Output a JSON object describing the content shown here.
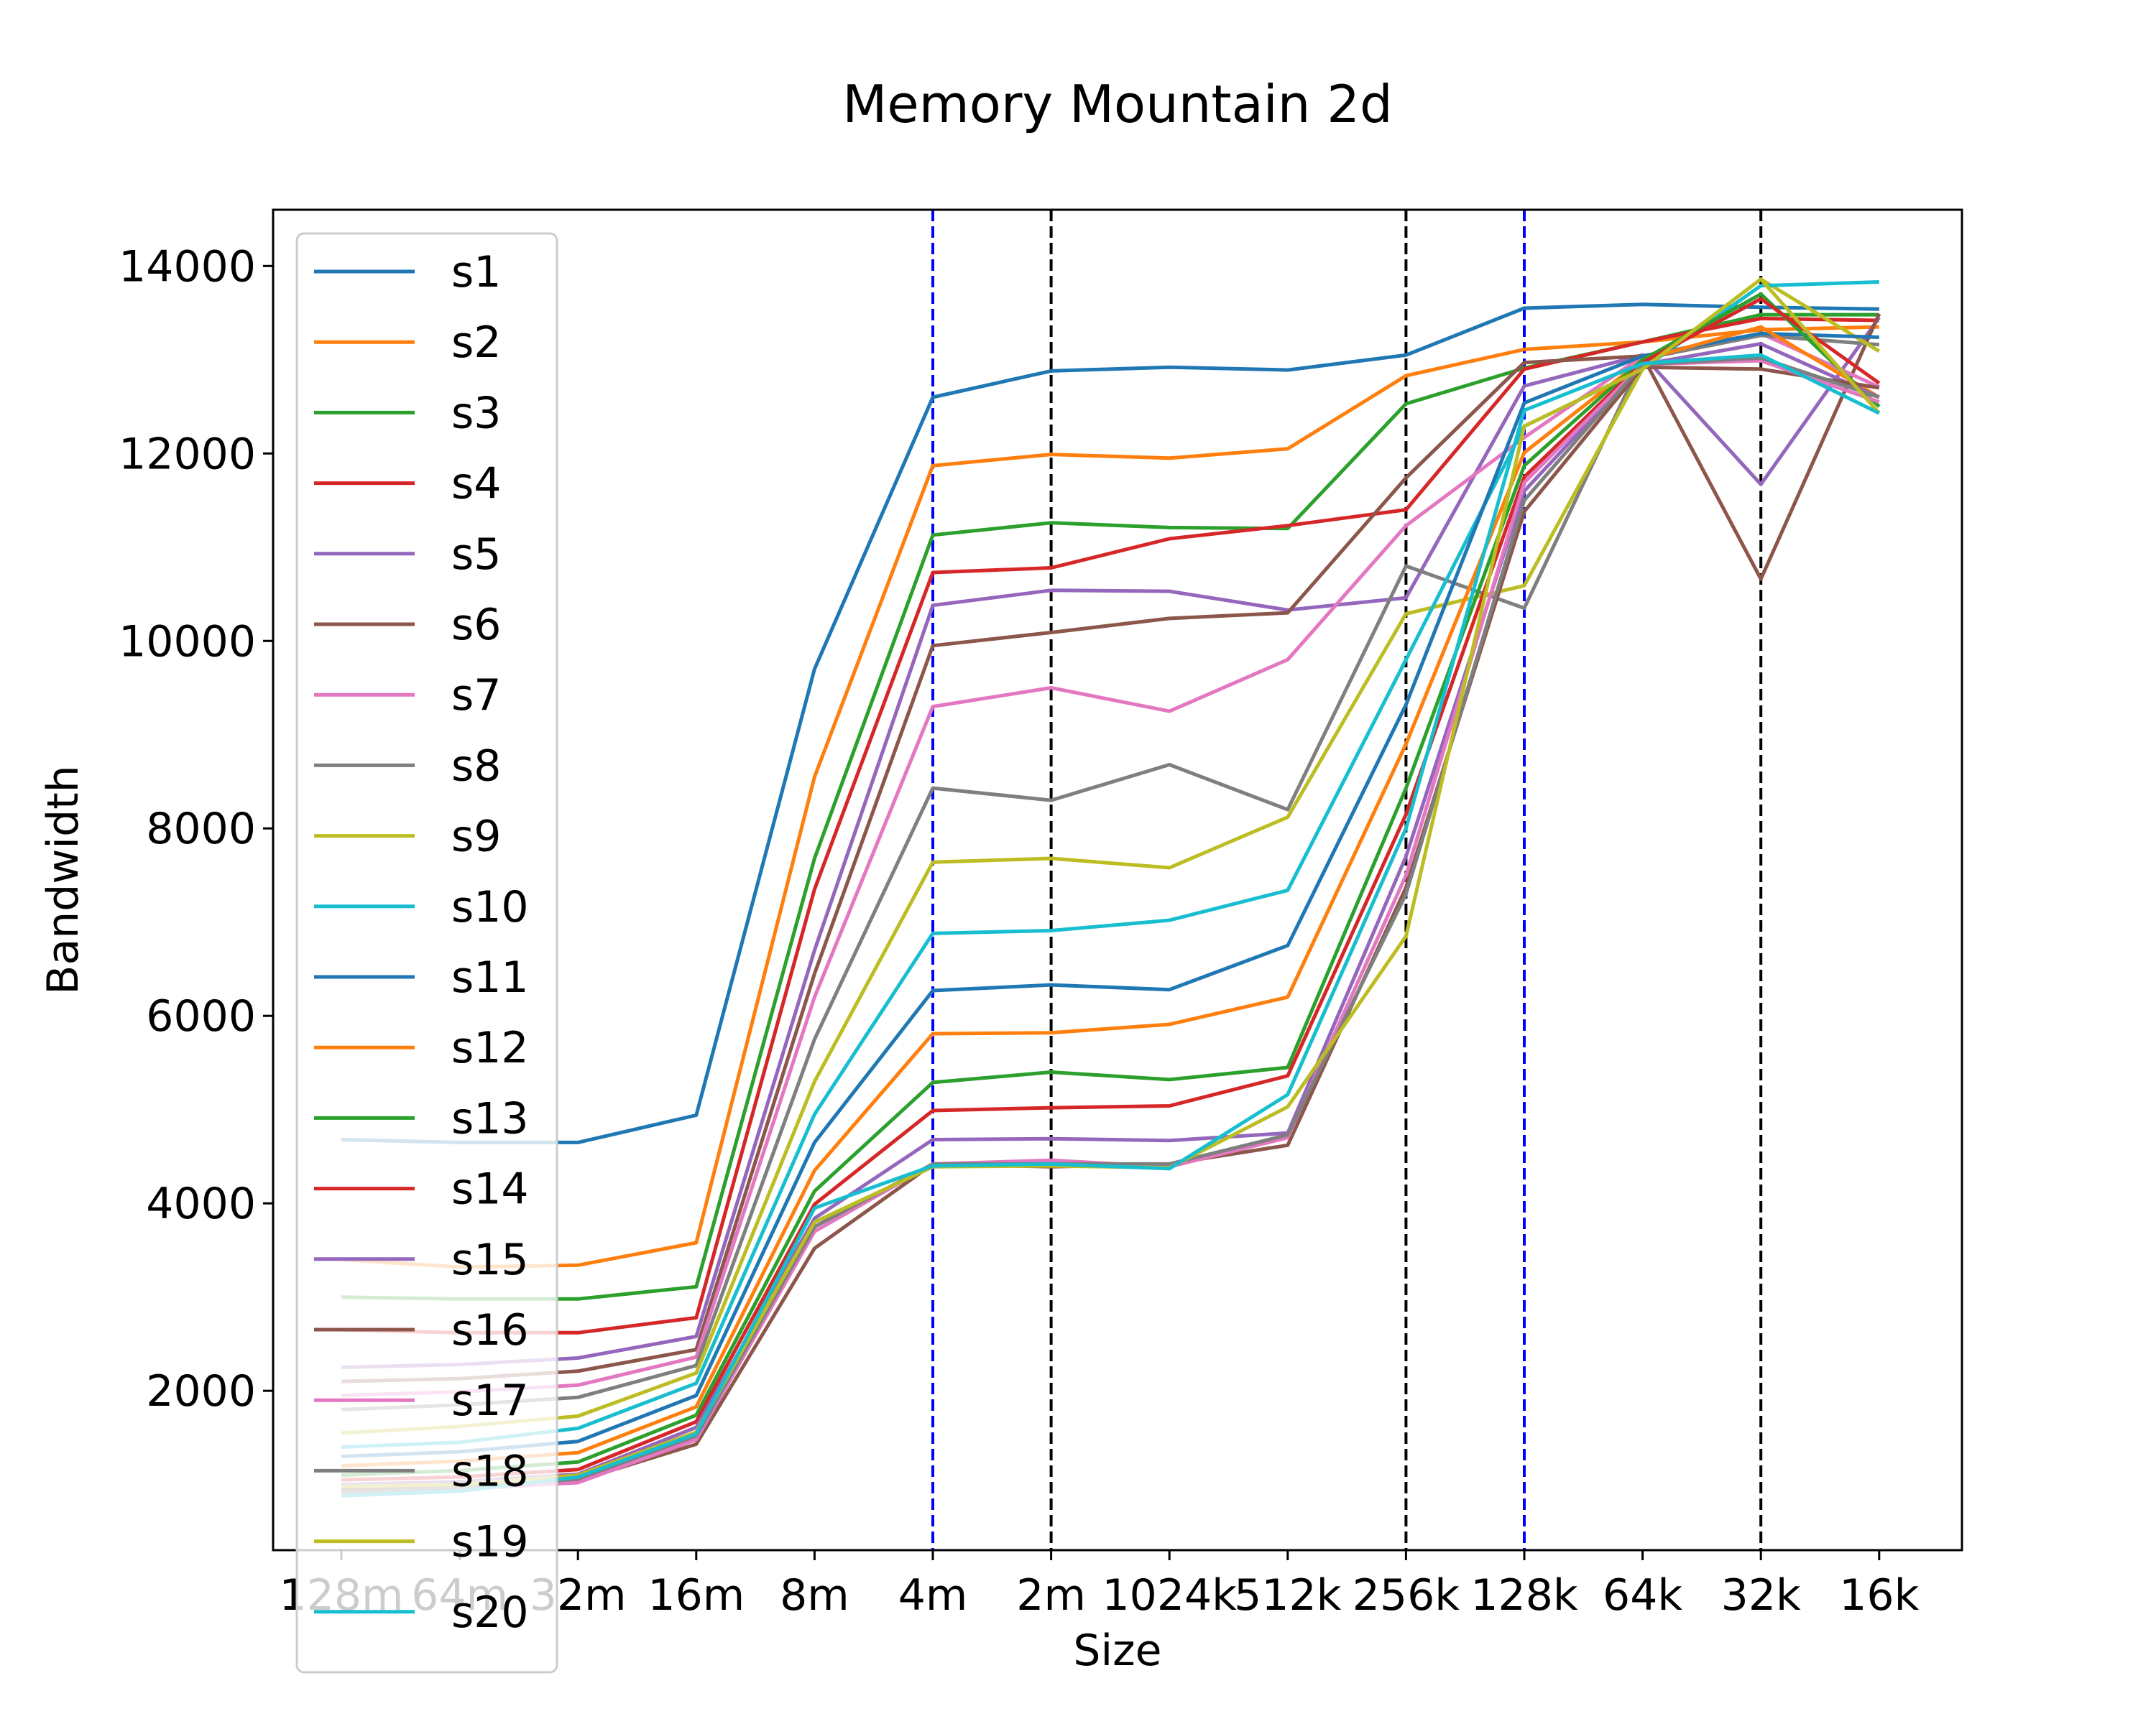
{
  "chart_data": {
    "type": "line",
    "title": "Memory Mountain 2d",
    "xlabel": "Size",
    "ylabel": "Bandwidth",
    "categories": [
      "128m",
      "64m",
      "32m",
      "16m",
      "8m",
      "4m",
      "2m",
      "1024k",
      "512k",
      "256k",
      "128k",
      "64k",
      "32k",
      "16k"
    ],
    "ylim": [
      300,
      14600
    ],
    "yticks": [
      2000,
      4000,
      6000,
      8000,
      10000,
      12000,
      14000
    ],
    "grid": false,
    "legend_position": "upper-left",
    "vlines": [
      {
        "category": "4m",
        "color": "#0000ff"
      },
      {
        "category": "2m",
        "color": "#000000"
      },
      {
        "category": "256k",
        "color": "#000000"
      },
      {
        "category": "128k",
        "color": "#0000ff"
      },
      {
        "category": "32k",
        "color": "#000000"
      }
    ],
    "series": [
      {
        "name": "s1",
        "color": "#1f77b4",
        "values": [
          4680,
          4650,
          4650,
          4940,
          9700,
          12600,
          12880,
          12920,
          12890,
          13050,
          13550,
          13590,
          13560,
          13540
        ]
      },
      {
        "name": "s2",
        "color": "#ff7f0e",
        "values": [
          3400,
          3320,
          3340,
          3580,
          8550,
          11870,
          11990,
          11950,
          12050,
          12830,
          13110,
          13190,
          13320,
          13350
        ]
      },
      {
        "name": "s3",
        "color": "#2ca02c",
        "values": [
          3000,
          2980,
          2980,
          3110,
          7680,
          11130,
          11260,
          11210,
          11200,
          12530,
          12910,
          13190,
          13480,
          13480
        ]
      },
      {
        "name": "s4",
        "color": "#d62728",
        "values": [
          2650,
          2620,
          2620,
          2780,
          7350,
          10730,
          10780,
          11090,
          11230,
          11400,
          12900,
          13190,
          13440,
          13420
        ]
      },
      {
        "name": "s5",
        "color": "#9467bd",
        "values": [
          2250,
          2280,
          2350,
          2580,
          6700,
          10380,
          10540,
          10530,
          10330,
          10460,
          12720,
          13050,
          11670,
          13450
        ]
      },
      {
        "name": "s6",
        "color": "#8c564b",
        "values": [
          2100,
          2130,
          2210,
          2440,
          6450,
          9950,
          10090,
          10240,
          10300,
          11740,
          12970,
          13040,
          10660,
          13490
        ]
      },
      {
        "name": "s7",
        "color": "#e377c2",
        "values": [
          1950,
          1990,
          2060,
          2360,
          6200,
          9300,
          9500,
          9250,
          9800,
          11230,
          12170,
          13040,
          13280,
          12710
        ]
      },
      {
        "name": "s8",
        "color": "#7f7f7f",
        "values": [
          1800,
          1850,
          1930,
          2270,
          5750,
          8430,
          8300,
          8680,
          8200,
          10800,
          10350,
          13010,
          13260,
          13160
        ]
      },
      {
        "name": "s9",
        "color": "#bcbd22",
        "values": [
          1550,
          1620,
          1730,
          2190,
          5300,
          7640,
          7680,
          7580,
          8120,
          10290,
          10590,
          12900,
          13860,
          13090
        ]
      },
      {
        "name": "s10",
        "color": "#17becf",
        "values": [
          1400,
          1450,
          1600,
          2080,
          4950,
          6880,
          6910,
          7020,
          7340,
          9800,
          12290,
          12900,
          13790,
          13830
        ]
      },
      {
        "name": "s11",
        "color": "#1f77b4",
        "values": [
          1300,
          1350,
          1460,
          1950,
          4650,
          6270,
          6330,
          6280,
          6750,
          9320,
          12540,
          13040,
          13280,
          13240
        ]
      },
      {
        "name": "s12",
        "color": "#ff7f0e",
        "values": [
          1200,
          1250,
          1340,
          1830,
          4350,
          5810,
          5820,
          5910,
          6200,
          8900,
          12010,
          13000,
          13350,
          12600
        ]
      },
      {
        "name": "s13",
        "color": "#2ca02c",
        "values": [
          1100,
          1150,
          1240,
          1740,
          4130,
          5290,
          5400,
          5320,
          5450,
          8430,
          11870,
          13000,
          13700,
          12500
        ]
      },
      {
        "name": "s14",
        "color": "#d62728",
        "values": [
          1050,
          1080,
          1160,
          1670,
          3990,
          4990,
          5020,
          5040,
          5360,
          8150,
          11750,
          12970,
          13650,
          12750
        ]
      },
      {
        "name": "s15",
        "color": "#9467bd",
        "values": [
          1000,
          1030,
          1110,
          1610,
          3840,
          4680,
          4690,
          4670,
          4750,
          7700,
          11600,
          12950,
          13170,
          12600
        ]
      },
      {
        "name": "s16",
        "color": "#8c564b",
        "values": [
          950,
          980,
          1040,
          1430,
          3520,
          4420,
          4390,
          4420,
          4620,
          7370,
          11380,
          12920,
          12900,
          12700
        ]
      },
      {
        "name": "s17",
        "color": "#e377c2",
        "values": [
          900,
          950,
          1020,
          1480,
          3700,
          4420,
          4460,
          4390,
          4700,
          7500,
          11690,
          12950,
          12990,
          12550
        ]
      },
      {
        "name": "s18",
        "color": "#7f7f7f",
        "values": [
          920,
          960,
          1060,
          1520,
          3750,
          4420,
          4420,
          4420,
          4730,
          7300,
          11500,
          12950,
          13020,
          12600
        ]
      },
      {
        "name": "s19",
        "color": "#bcbd22",
        "values": [
          980,
          1000,
          1100,
          1560,
          3800,
          4390,
          4400,
          4380,
          5030,
          6850,
          12290,
          12900,
          13860,
          12430
        ]
      },
      {
        "name": "s20",
        "color": "#17becf",
        "values": [
          880,
          930,
          1080,
          1540,
          3950,
          4400,
          4420,
          4370,
          5160,
          8000,
          12460,
          12960,
          13050,
          12430
        ]
      }
    ]
  }
}
